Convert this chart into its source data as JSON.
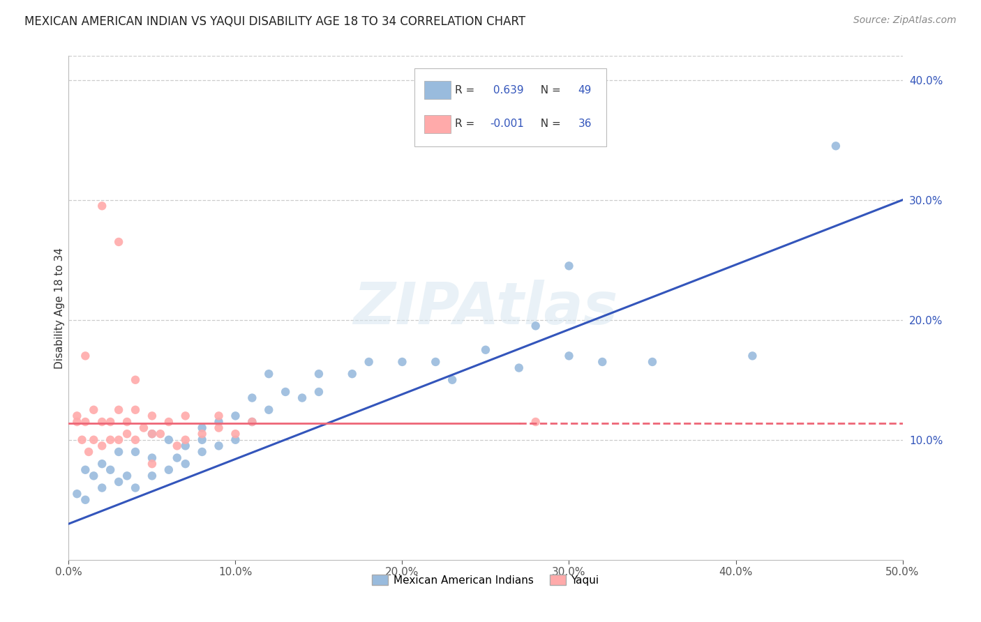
{
  "title": "MEXICAN AMERICAN INDIAN VS YAQUI DISABILITY AGE 18 TO 34 CORRELATION CHART",
  "source": "Source: ZipAtlas.com",
  "ylabel": "Disability Age 18 to 34",
  "xlim": [
    0.0,
    0.5
  ],
  "ylim": [
    0.0,
    0.42
  ],
  "xticks": [
    0.0,
    0.1,
    0.2,
    0.3,
    0.4,
    0.5
  ],
  "yticks": [
    0.1,
    0.2,
    0.3,
    0.4
  ],
  "xtick_labels": [
    "0.0%",
    "10.0%",
    "20.0%",
    "30.0%",
    "40.0%",
    "50.0%"
  ],
  "ytick_labels_right": [
    "10.0%",
    "20.0%",
    "30.0%",
    "40.0%"
  ],
  "blue_color": "#99BBDD",
  "pink_color": "#FFAAAA",
  "blue_line_color": "#3355BB",
  "pink_line_color": "#EE6677",
  "R_blue": 0.639,
  "N_blue": 49,
  "R_pink": -0.001,
  "N_pink": 36,
  "watermark": "ZIPAtlas",
  "legend_label_blue": "Mexican American Indians",
  "legend_label_pink": "Yaqui",
  "blue_scatter_x": [
    0.005,
    0.01,
    0.01,
    0.015,
    0.02,
    0.02,
    0.025,
    0.03,
    0.03,
    0.035,
    0.04,
    0.04,
    0.05,
    0.05,
    0.05,
    0.06,
    0.06,
    0.065,
    0.07,
    0.07,
    0.08,
    0.08,
    0.08,
    0.09,
    0.09,
    0.1,
    0.1,
    0.11,
    0.11,
    0.12,
    0.12,
    0.13,
    0.14,
    0.15,
    0.15,
    0.17,
    0.18,
    0.2,
    0.22,
    0.23,
    0.25,
    0.27,
    0.28,
    0.3,
    0.3,
    0.32,
    0.35,
    0.41,
    0.46
  ],
  "blue_scatter_y": [
    0.055,
    0.05,
    0.075,
    0.07,
    0.06,
    0.08,
    0.075,
    0.065,
    0.09,
    0.07,
    0.06,
    0.09,
    0.07,
    0.085,
    0.105,
    0.075,
    0.1,
    0.085,
    0.08,
    0.095,
    0.09,
    0.1,
    0.11,
    0.095,
    0.115,
    0.1,
    0.12,
    0.115,
    0.135,
    0.125,
    0.155,
    0.14,
    0.135,
    0.14,
    0.155,
    0.155,
    0.165,
    0.165,
    0.165,
    0.15,
    0.175,
    0.16,
    0.195,
    0.17,
    0.245,
    0.165,
    0.165,
    0.17,
    0.345
  ],
  "pink_scatter_x": [
    0.005,
    0.005,
    0.008,
    0.01,
    0.012,
    0.015,
    0.015,
    0.02,
    0.02,
    0.025,
    0.025,
    0.03,
    0.03,
    0.035,
    0.035,
    0.04,
    0.04,
    0.045,
    0.05,
    0.05,
    0.055,
    0.06,
    0.065,
    0.07,
    0.07,
    0.08,
    0.09,
    0.09,
    0.1,
    0.11,
    0.02,
    0.03,
    0.04,
    0.05,
    0.28,
    0.01
  ],
  "pink_scatter_y": [
    0.115,
    0.12,
    0.1,
    0.115,
    0.09,
    0.125,
    0.1,
    0.115,
    0.095,
    0.1,
    0.115,
    0.1,
    0.125,
    0.105,
    0.115,
    0.1,
    0.125,
    0.11,
    0.105,
    0.12,
    0.105,
    0.115,
    0.095,
    0.1,
    0.12,
    0.105,
    0.11,
    0.12,
    0.105,
    0.115,
    0.295,
    0.265,
    0.15,
    0.08,
    0.115,
    0.17
  ],
  "blue_line_x": [
    0.0,
    0.5
  ],
  "blue_line_y": [
    0.03,
    0.3
  ],
  "pink_line_x": [
    0.0,
    0.5
  ],
  "pink_line_y": [
    0.114,
    0.114
  ],
  "grid_color": "#CCCCCC",
  "grid_linestyle": "--"
}
